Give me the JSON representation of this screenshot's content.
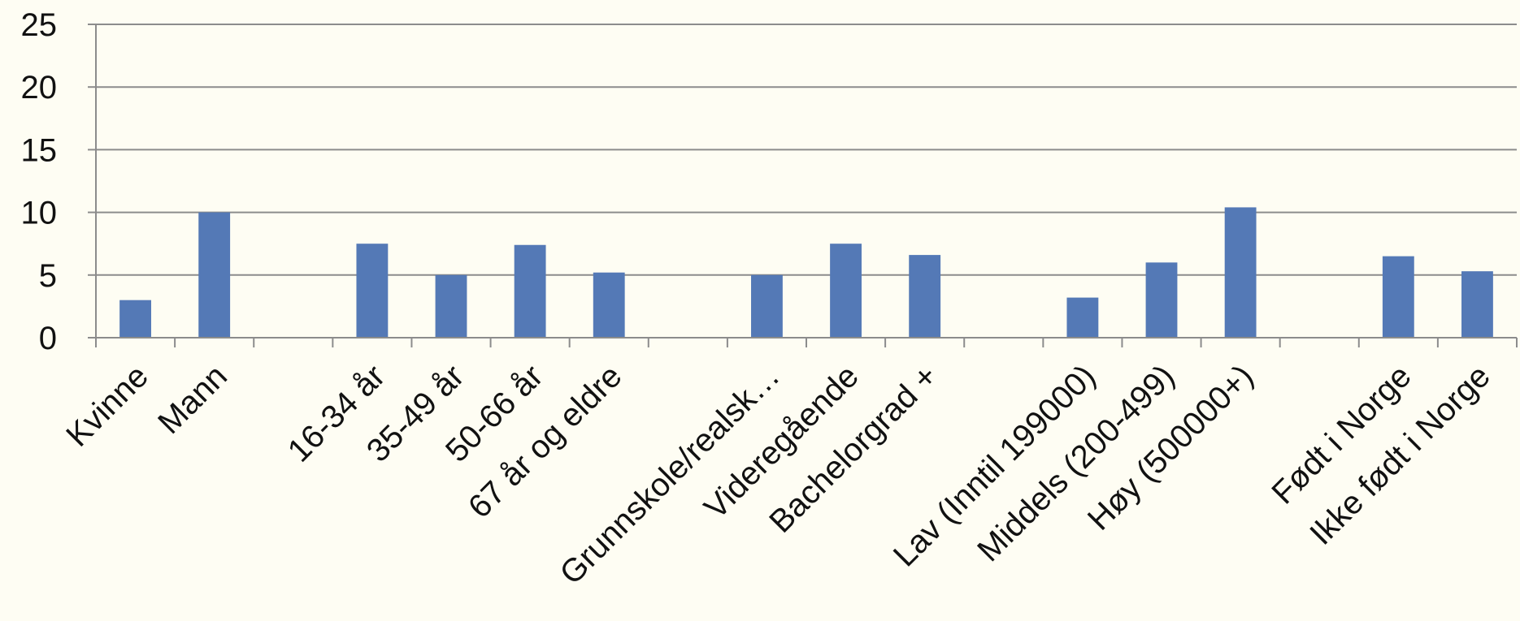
{
  "chart_data": {
    "type": "bar",
    "categories": [
      "Kvinne",
      "Mann",
      "",
      "16-34 år",
      "35-49 år",
      "50-66 år",
      "67 år og eldre",
      "",
      "Grunnskole/realsk…",
      "Videregående",
      "Bachelorgrad +",
      "",
      "Lav (Inntil 199000)",
      "Middels (200-499)",
      "Høy (500000+)",
      "",
      "Født i Norge",
      "Ikke født i Norge"
    ],
    "values": [
      3.0,
      10.0,
      null,
      7.5,
      5.0,
      7.4,
      5.2,
      null,
      5.0,
      7.5,
      6.6,
      null,
      3.2,
      6.0,
      10.4,
      null,
      6.5,
      5.3
    ],
    "ylim": [
      0,
      25
    ],
    "yticks": [
      0,
      5,
      10,
      15,
      20,
      25
    ],
    "grid": true,
    "bar_color": "#5479b6",
    "grid_color": "#8c8c8c",
    "background_color": "#fefdf3"
  }
}
